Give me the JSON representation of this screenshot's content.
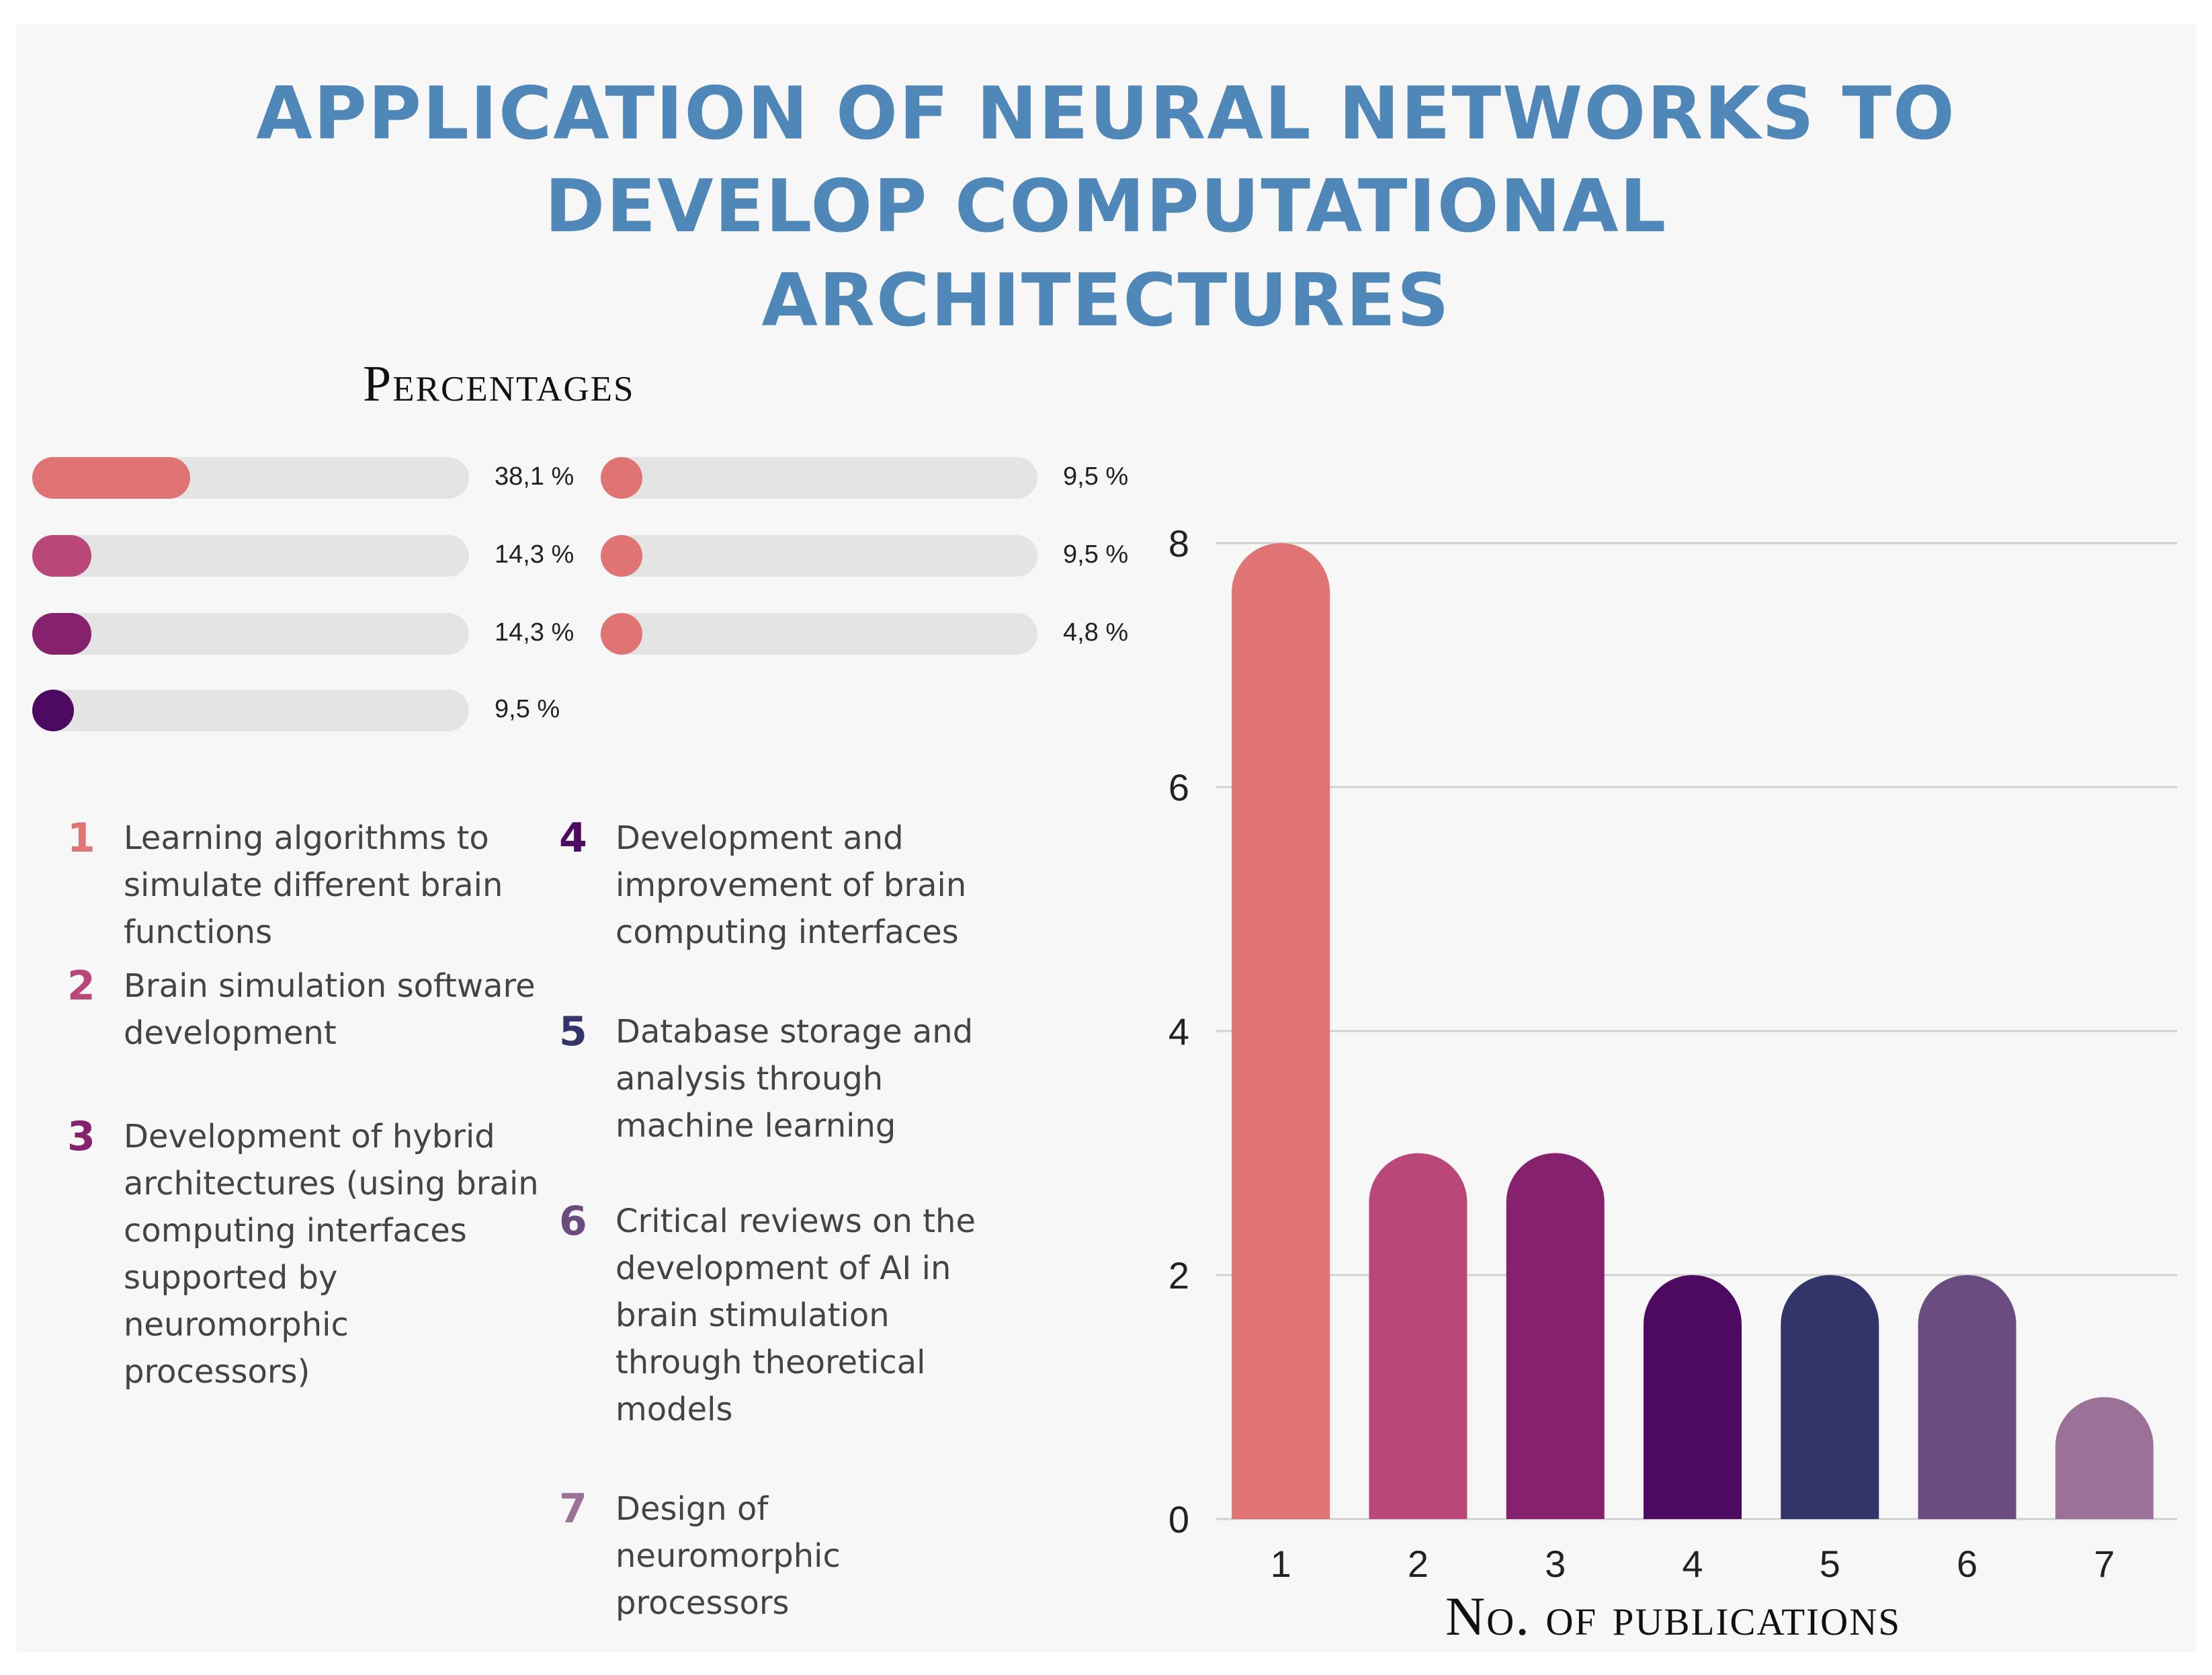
{
  "title": {
    "line1": "APPLICATION OF NEURAL NETWORKS TO",
    "line2": "DEVELOP COMPUTATIONAL",
    "line3": "ARCHITECTURES"
  },
  "percentages": {
    "heading": "Percentages",
    "bars": [
      {
        "label": "38,1 %",
        "value": 38.1,
        "color": "#e07373"
      },
      {
        "label": "14,3 %",
        "value": 14.3,
        "color": "#b94878"
      },
      {
        "label": "14,3 %",
        "value": 14.3,
        "color": "#86216e"
      },
      {
        "label": "9,5 %",
        "value": 9.5,
        "color": "#4e0a60"
      },
      {
        "label": "9,5 %",
        "value": 9.5,
        "color": "#e07373"
      },
      {
        "label": "9,5 %",
        "value": 9.5,
        "color": "#e07373"
      },
      {
        "label": "4,8 %",
        "value": 4.8,
        "color": "#e07373"
      }
    ]
  },
  "legend": [
    {
      "num": "1",
      "text": "Learning algorithms to simulate different brain functions",
      "color": "#e07373"
    },
    {
      "num": "2",
      "text": "Brain simulation software development",
      "color": "#b94878"
    },
    {
      "num": "3",
      "text": "Development of hybrid architectures (using brain computing interfaces supported by neuromorphic processors)",
      "color": "#86216e"
    },
    {
      "num": "4",
      "text": "Development and improvement of brain computing interfaces",
      "color": "#4e0a60"
    },
    {
      "num": "5",
      "text": "Database storage and analysis through machine learning",
      "color": "#33356a"
    },
    {
      "num": "6",
      "text": "Critical reviews on the development of AI in brain stimulation through theoretical models",
      "color": "#6a4c80"
    },
    {
      "num": "7",
      "text": "Design of neuromorphic processors",
      "color": "#9b7198"
    }
  ],
  "chart_data": {
    "type": "bar",
    "title": "",
    "categories": [
      "1",
      "2",
      "3",
      "4",
      "5",
      "6",
      "7"
    ],
    "values": [
      8,
      3,
      3,
      2,
      2,
      2,
      1
    ],
    "colors": [
      "#e07373",
      "#b94878",
      "#86216e",
      "#4e0a60",
      "#33356a",
      "#6a4c80",
      "#9b7198"
    ],
    "xlabel": "No. of publications",
    "ylabel": "",
    "ylim": [
      0,
      8
    ],
    "yticks": [
      "0",
      "2",
      "4",
      "6",
      "8"
    ],
    "grid": true
  }
}
